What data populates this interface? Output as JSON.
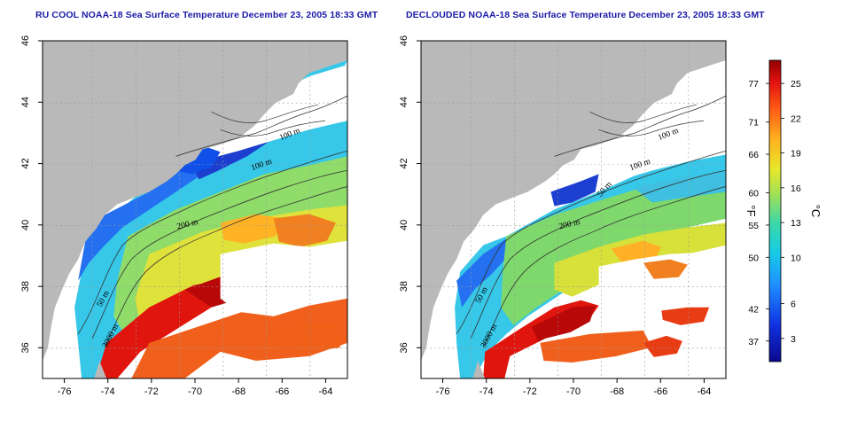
{
  "maps": [
    {
      "title": "RU COOL NOAA-18 Sea Surface Temperature December 23, 2005 18:33 GMT",
      "variant": "raw",
      "contour_labels": [
        "100 m",
        "100 m",
        "200 m",
        "50 m",
        "3000 m"
      ]
    },
    {
      "title": "DECLOUDED NOAA-18 Sea Surface Temperature December 23, 2005 18:33 GMT",
      "variant": "declouded",
      "contour_labels": [
        "100 m",
        "100 m",
        "50 m",
        "200 m",
        "50 m",
        "3000 m"
      ]
    }
  ],
  "axes": {
    "x_ticks": [
      "-76",
      "-74",
      "-72",
      "-70",
      "-68",
      "-66",
      "-64"
    ],
    "y_ticks": [
      "36",
      "38",
      "40",
      "42",
      "44",
      "46"
    ]
  },
  "colorbar": {
    "fahrenheit_ticks": [
      "77",
      "71",
      "66",
      "60",
      "55",
      "50",
      "42",
      "37"
    ],
    "celsius_ticks": [
      "25",
      "22",
      "19",
      "16",
      "13",
      "10",
      "6",
      "3"
    ],
    "fahrenheit_unit": "°F",
    "celsius_unit": "°C"
  },
  "colors": {
    "land": "#b9b9b9",
    "cloud": "#ffffff",
    "title": "#1a1aa6"
  }
}
